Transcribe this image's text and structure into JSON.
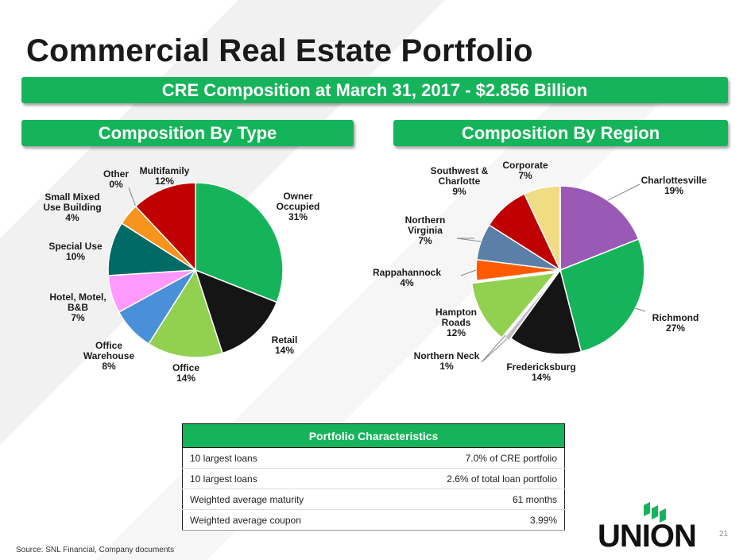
{
  "page": {
    "title": "Commercial Real Estate Portfolio",
    "banner_main": "CRE Composition at March 31, 2017 - $2.856 Billion",
    "banner_left": "Composition By Type",
    "banner_right": "Composition By Region",
    "source": "Source: SNL Financial, Company documents",
    "page_number": "21",
    "logo_text": "UNION"
  },
  "chart_data": [
    {
      "type": "pie",
      "title": "Composition By Type",
      "unit": "%",
      "slices": [
        {
          "label": "Owner Occupied",
          "value": 31,
          "color": "#16b45a"
        },
        {
          "label": "Retail",
          "value": 14,
          "color": "#151515"
        },
        {
          "label": "Office",
          "value": 14,
          "color": "#92d050"
        },
        {
          "label": "Office Warehouse",
          "value": 8,
          "color": "#4a90d9"
        },
        {
          "label": "Hotel, Motel, B&B",
          "value": 7,
          "color": "#ff99ff"
        },
        {
          "label": "Special Use",
          "value": 10,
          "color": "#006a66"
        },
        {
          "label": "Small Mixed Use Building",
          "value": 4,
          "color": "#f7941d"
        },
        {
          "label": "Other",
          "value": 0,
          "color": "#d9d9d9"
        },
        {
          "label": "Multifamily",
          "value": 12,
          "color": "#c00000"
        }
      ]
    },
    {
      "type": "pie",
      "title": "Composition By Region",
      "unit": "%",
      "slices": [
        {
          "label": "Charlottesville",
          "value": 19,
          "color": "#9b59b6"
        },
        {
          "label": "Richmond",
          "value": 27,
          "color": "#16b45a"
        },
        {
          "label": "Fredericksburg",
          "value": 14,
          "color": "#151515"
        },
        {
          "label": "Northern Neck",
          "value": 1,
          "color": "#bfbfbf"
        },
        {
          "label": "Hampton Roads",
          "value": 12,
          "color": "#92d050"
        },
        {
          "label": "Rappahannock",
          "value": 4,
          "color": "#ff5a00"
        },
        {
          "label": "Northern Virginia",
          "value": 7,
          "color": "#5b7fa6"
        },
        {
          "label": "Southwest & Charlotte",
          "value": 9,
          "color": "#c00000"
        },
        {
          "label": "Corporate",
          "value": 7,
          "color": "#f0dc82"
        }
      ]
    }
  ],
  "labels": {
    "type": [
      [
        "Owner",
        "Occupied",
        "31%"
      ],
      [
        "Retail",
        "14%"
      ],
      [
        "Office",
        "14%"
      ],
      [
        "Office",
        "Warehouse",
        "8%"
      ],
      [
        "Hotel, Motel,",
        "B&B",
        "7%"
      ],
      [
        "Special Use",
        "10%"
      ],
      [
        "Small Mixed",
        "Use Building",
        "4%"
      ],
      [
        "Other",
        "0%"
      ],
      [
        "Multifamily",
        "12%"
      ]
    ],
    "region": [
      [
        "Charlottesville",
        "19%"
      ],
      [
        "Richmond",
        "27%"
      ],
      [
        "Fredericksburg",
        "14%"
      ],
      [
        "Northern Neck",
        "1%"
      ],
      [
        "Hampton",
        "Roads",
        "12%"
      ],
      [
        "Rappahannock",
        "4%"
      ],
      [
        "Northern",
        "Virginia",
        "7%"
      ],
      [
        "Southwest &",
        "Charlotte",
        "9%"
      ],
      [
        "Corporate",
        "7%"
      ]
    ]
  },
  "table": {
    "header": "Portfolio Characteristics",
    "rows": [
      {
        "label": "10 largest loans",
        "value": "7.0% of CRE portfolio"
      },
      {
        "label": "10 largest loans",
        "value": "2.6% of total loan portfolio"
      },
      {
        "label": "Weighted average maturity",
        "value": "61 months"
      },
      {
        "label": "Weighted average coupon",
        "value": "3.99%"
      }
    ]
  }
}
